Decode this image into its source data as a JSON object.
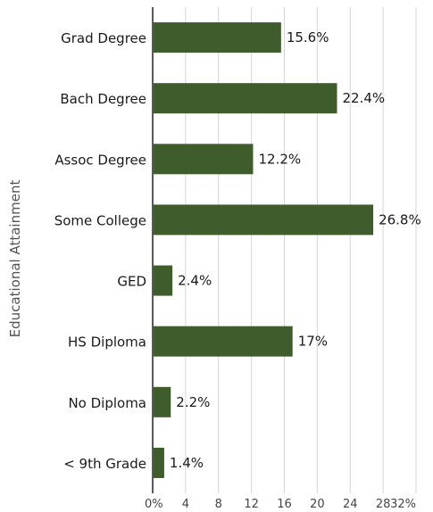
{
  "chart_data": {
    "type": "bar",
    "orientation": "horizontal",
    "title": "",
    "xlabel": "",
    "ylabel": "Educational Attainment",
    "categories": [
      "Grad Degree",
      "Bach Degree",
      "Assoc Degree",
      "Some College",
      "GED",
      "HS Diploma",
      "No Diploma",
      "< 9th Grade"
    ],
    "values": [
      15.6,
      22.4,
      12.2,
      26.8,
      2.4,
      17,
      2.2,
      1.4
    ],
    "value_labels": [
      "15.6%",
      "22.4%",
      "12.2%",
      "26.8%",
      "2.4%",
      "17%",
      "2.2%",
      "1.4%"
    ],
    "xlim": [
      0,
      32
    ],
    "x_ticks": [
      0,
      4,
      8,
      12,
      16,
      20,
      24,
      28,
      32
    ],
    "x_tick_labels": [
      "0%",
      "4",
      "8",
      "12",
      "16",
      "20",
      "24",
      "28",
      "32%"
    ],
    "grid": "vertical",
    "legend": "none",
    "bar_color": "#3e5c2c"
  }
}
